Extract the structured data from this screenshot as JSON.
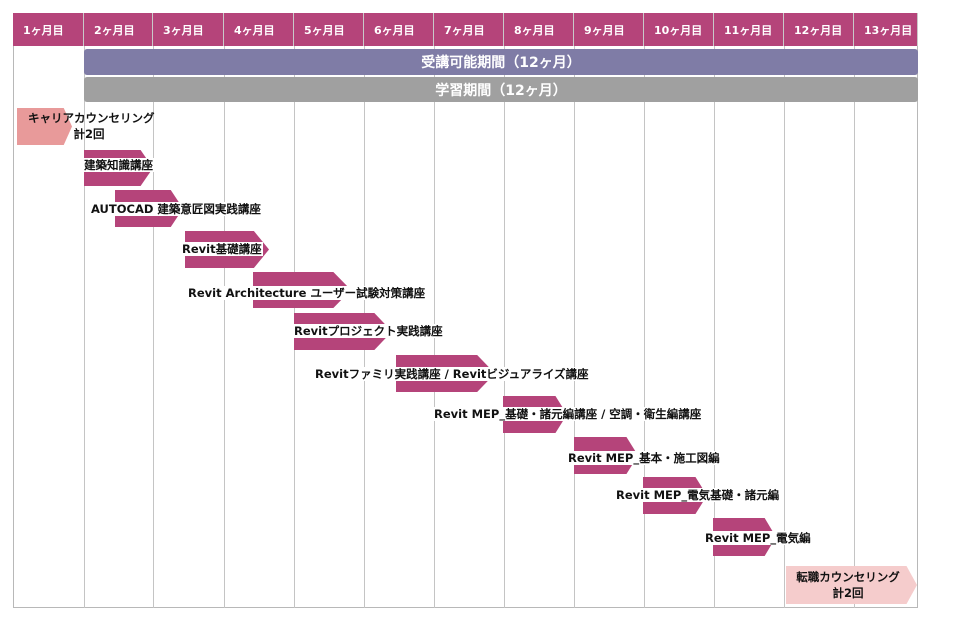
{
  "months": [
    "1ヶ月目",
    "2ヶ月目",
    "3ヶ月目",
    "4ヶ月目",
    "5ヶ月目",
    "6ヶ月目",
    "7ヶ月目",
    "8ヶ月目",
    "9ヶ月目",
    "10ヶ月目",
    "11ヶ月目",
    "12ヶ月目",
    "13ヶ月目"
  ],
  "bands": {
    "enrollment": "受講可能期間（12ヶ月）",
    "study": "学習期間（12ヶ月）"
  },
  "colors": {
    "header": "#b5447a",
    "enrollment": "#7f7ca6",
    "study": "#a0a0a0",
    "course_bar": "#b5447a",
    "career": "#e89a9a",
    "job": "#f5cccc"
  },
  "career_counseling": {
    "line1": "キャリアカウンセリング",
    "line2": "計2回"
  },
  "courses": [
    "建築知識講座",
    "AUTOCAD 建築意匠図実践講座",
    "Revit基礎講座",
    "Revit Architecture ユーザー試験対策講座",
    "Revitプロジェクト実践講座",
    "Revitファミリ実践講座  / Revitビジュアライズ講座",
    "Revit MEP_基礎・諸元編講座 / 空調・衛生編講座",
    "Revit MEP_基本・施工図編",
    "Revit MEP_電気基礎・諸元編",
    "Revit MEP_電気編"
  ],
  "job_counseling": {
    "line1": "転職カウンセリング",
    "line2": "計2回"
  }
}
